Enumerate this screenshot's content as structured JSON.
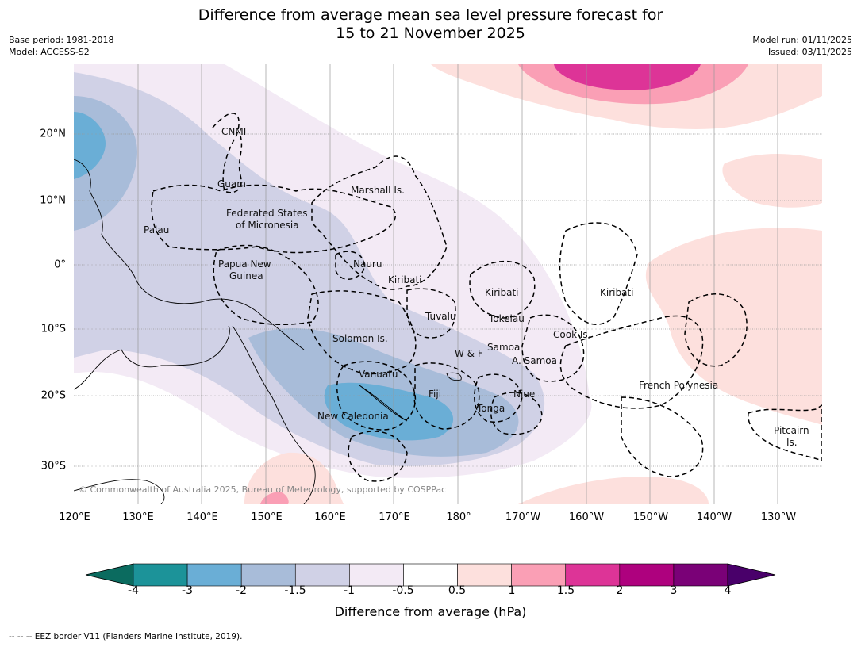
{
  "header": {
    "title_line1": "Difference from average mean sea level pressure forecast for",
    "title_line2": "15 to 21 November 2025",
    "base_period": "Base period: 1981-2018",
    "model": "Model: ACCESS-S2",
    "model_run": "Model run: 01/11/2025",
    "issued": "Issued: 03/11/2025"
  },
  "map": {
    "longitude_labels": [
      "120°E",
      "130°E",
      "140°E",
      "150°E",
      "160°E",
      "170°E",
      "180°",
      "170°W",
      "160°W",
      "150°W",
      "140°W",
      "130°W"
    ],
    "latitude_labels": [
      "20°N",
      "10°N",
      "0°",
      "10°S",
      "20°S",
      "30°S"
    ],
    "place_labels": {
      "cnmi": "CNMI",
      "guam": "Guam",
      "marshall": "Marshall Is.",
      "fsm_1": "Federated States",
      "fsm_2": "of Micronesia",
      "palau": "Palau",
      "png_1": "Papua New",
      "png_2": "Guinea",
      "nauru": "Nauru",
      "kiribati_w": "Kiribati",
      "kiribati_c": "Kiribati",
      "kiribati_e": "Kiribati",
      "tuvalu": "Tuvalu",
      "tokelau": "Tokelau",
      "cook": "Cook Is.",
      "solomon": "Solomon Is.",
      "wf": "W & F",
      "samoa": "Samoa",
      "asamoa": "A. Samoa",
      "vanuatu": "Vanuatu",
      "fiji": "Fiji",
      "niue": "Niue",
      "tonga": "Tonga",
      "new_caledonia": "New Caledonia",
      "french_polynesia": "French Polynesia",
      "pitcairn_1": "Pitcairn",
      "pitcairn_2": "Is."
    },
    "copyright": "© Commonwealth of Australia 2025, Bureau of Meteorology, supported by COSPPac"
  },
  "colorbar": {
    "ticks": [
      "-4",
      "-3",
      "-2",
      "-1.5",
      "-1",
      "-0.5",
      "0.5",
      "1",
      "1.5",
      "2",
      "3",
      "4"
    ],
    "label": "Difference from average (hPa)",
    "colors": {
      "below_min": "#0b6b5f",
      "bins": [
        "#1c9399",
        "#6aaed6",
        "#a8bcd9",
        "#d0d1e6",
        "#f3eaf5",
        "#ffffff",
        "#fde0dd",
        "#fa9fb5",
        "#dd3497",
        "#ae017e",
        "#7a0177"
      ],
      "above_max": "#49006a"
    }
  },
  "footnote": "--  --  -- EEZ border V11 (Flanders Marine Institute, 2019)."
}
